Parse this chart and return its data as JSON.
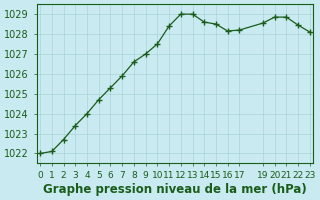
{
  "x": [
    0,
    1,
    2,
    3,
    4,
    5,
    6,
    7,
    8,
    9,
    10,
    11,
    12,
    13,
    14,
    15,
    16,
    17,
    19,
    20,
    21,
    22,
    23
  ],
  "y": [
    1022.0,
    1022.1,
    1022.7,
    1023.4,
    1024.0,
    1024.7,
    1025.3,
    1025.9,
    1026.6,
    1027.0,
    1027.5,
    1028.4,
    1029.0,
    1029.0,
    1028.6,
    1028.5,
    1028.15,
    1028.2,
    1028.55,
    1028.85,
    1028.85,
    1028.45,
    1028.1
  ],
  "line_color": "#1a5c1a",
  "marker_color": "#1a5c1a",
  "bg_color": "#c8eaf0",
  "grid_color": "#aad4d4",
  "title": "Graphe pression niveau de la mer (hPa)",
  "ylabel_ticks": [
    1022,
    1023,
    1024,
    1025,
    1026,
    1027,
    1028,
    1029
  ],
  "xlabel_ticks": [
    0,
    1,
    2,
    3,
    4,
    5,
    6,
    7,
    8,
    9,
    10,
    11,
    12,
    13,
    14,
    15,
    16,
    17,
    19,
    20,
    21,
    22,
    23
  ],
  "xlim": [
    -0.3,
    23.3
  ],
  "ylim": [
    1021.5,
    1029.5
  ],
  "title_color": "#1a5c1a",
  "title_fontsize": 8.5,
  "tick_fontsize": 7,
  "border_color": "#1a5c1a"
}
